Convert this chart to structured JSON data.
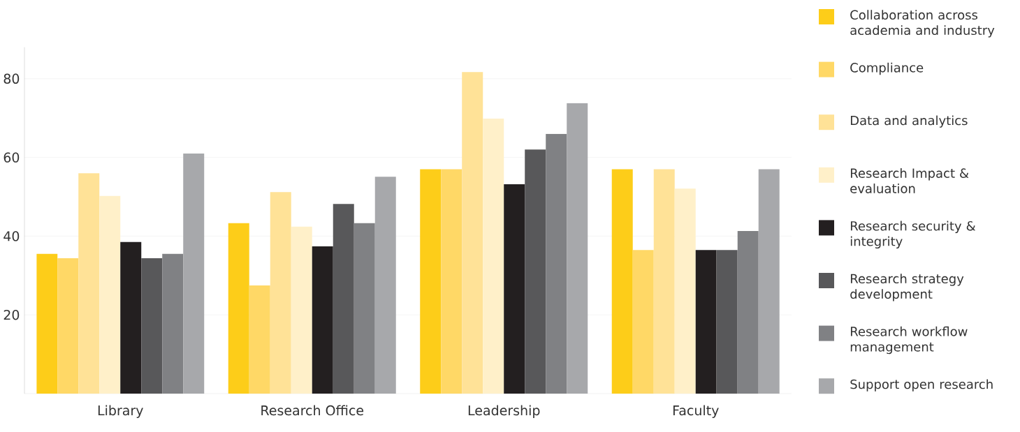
{
  "chart_data": {
    "type": "bar",
    "categories": [
      "Library",
      "Research Office",
      "Leadership",
      "Faculty"
    ],
    "series": [
      {
        "name": "Collaboration across academia and industry",
        "color": "#fdcd19",
        "values": [
          35.5,
          43.3,
          57,
          57
        ]
      },
      {
        "name": "Compliance",
        "color": "#ffd866",
        "values": [
          34.4,
          27.5,
          57,
          36.5
        ]
      },
      {
        "name": "Data and analytics",
        "color": "#ffe297",
        "values": [
          56,
          51.2,
          81.7,
          57
        ]
      },
      {
        "name": "Research Impact & evaluation",
        "color": "#fff0c9",
        "values": [
          50.2,
          42.4,
          69.9,
          52.1
        ]
      },
      {
        "name": "Research security & integrity",
        "color": "#231f20",
        "values": [
          38.5,
          37.4,
          53.2,
          36.5
        ]
      },
      {
        "name": "Research strategy development",
        "color": "#58585a",
        "values": [
          34.4,
          48.2,
          62,
          36.5
        ]
      },
      {
        "name": "Research workflow management",
        "color": "#808184",
        "values": [
          35.5,
          43.3,
          66,
          41.3
        ]
      },
      {
        "name": "Support open research",
        "color": "#a7a8ab",
        "values": [
          61,
          55.1,
          73.8,
          57
        ]
      }
    ],
    "ylim": [
      0,
      88
    ],
    "yticks": [
      20,
      40,
      60,
      80
    ],
    "grid": "y",
    "legend": "right"
  }
}
